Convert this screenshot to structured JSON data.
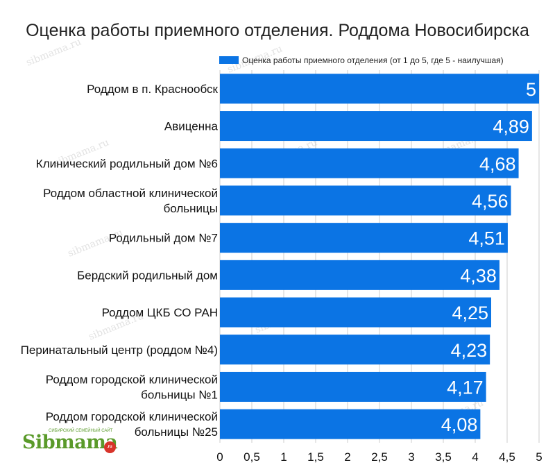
{
  "chart_data": {
    "type": "bar",
    "orientation": "horizontal",
    "title": "Оценка работы приемного отделения. Роддома Новосибирска",
    "legend_position": "top-right",
    "series": [
      {
        "name": "Оценка работы приемного отделения (от 1 до 5, где 5 - наилучшая)",
        "color": "#0b74e4",
        "values": [
          5,
          4.89,
          4.68,
          4.56,
          4.51,
          4.38,
          4.25,
          4.23,
          4.17,
          4.08
        ],
        "value_labels": [
          "5",
          "4,89",
          "4,68",
          "4,56",
          "4,51",
          "4,38",
          "4,25",
          "4,23",
          "4,17",
          "4,08"
        ]
      }
    ],
    "categories": [
      [
        "Роддом в п. Краснообск"
      ],
      [
        "Авиценна"
      ],
      [
        "Клинический родильный дом №6"
      ],
      [
        "Роддом областной клинической",
        "больницы"
      ],
      [
        "Родильный дом №7"
      ],
      [
        "Бердский родильный дом"
      ],
      [
        "Роддом ЦКБ СО РАН"
      ],
      [
        "Перинатальный центр (роддом №4)"
      ],
      [
        "Роддом городской клинической",
        "больницы №1"
      ],
      [
        "Роддом городской клинической",
        "больницы №25"
      ]
    ],
    "xlim": [
      0,
      5
    ],
    "x_ticks": [
      0,
      0.5,
      1,
      1.5,
      2,
      2.5,
      3,
      3.5,
      4,
      4.5,
      5
    ],
    "x_tick_labels": [
      "0",
      "0,5",
      "1",
      "1,5",
      "2",
      "2,5",
      "3",
      "3,5",
      "4",
      "4,5",
      "5"
    ],
    "grid": true
  },
  "watermark": "sibmama.ru",
  "logo": {
    "name": "Sibmama",
    "domain": ".ru",
    "tagline": "СИБИРСКИЙ СЕМЕЙНЫЙ САЙТ"
  }
}
